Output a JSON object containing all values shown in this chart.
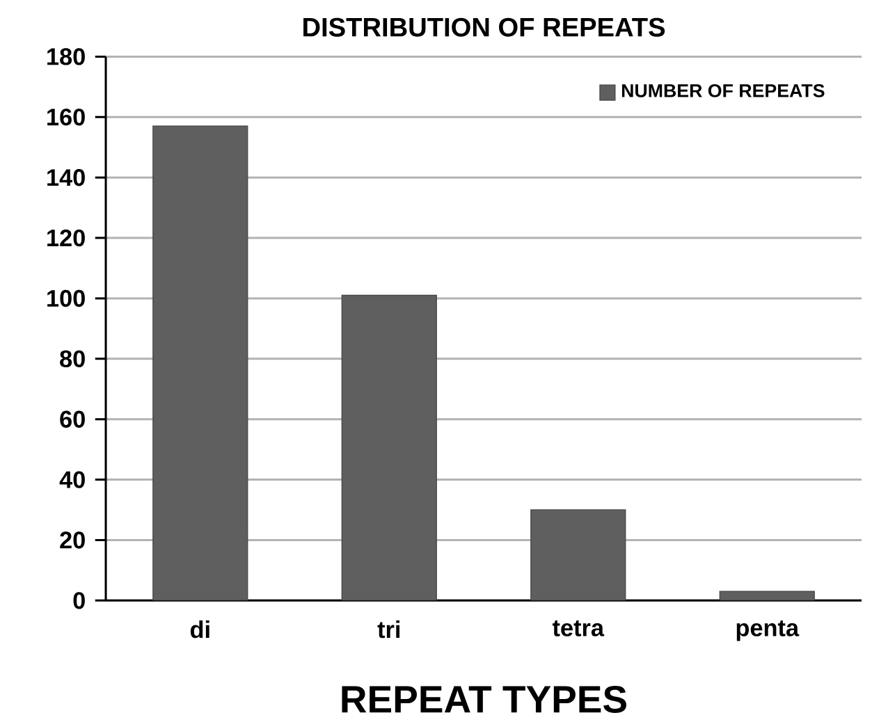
{
  "chart_data": {
    "type": "bar",
    "title": "DISTRIBUTION OF REPEATS",
    "xlabel": "REPEAT TYPES",
    "categories": [
      "di",
      "tri",
      "tetra",
      "penta"
    ],
    "series": [
      {
        "name": "NUMBER OF REPEATS",
        "color": "#5f5f5f",
        "values": [
          157,
          101,
          30,
          3
        ]
      }
    ],
    "ylim": [
      0,
      180
    ],
    "yticks": [
      0,
      20,
      40,
      60,
      80,
      100,
      120,
      140,
      160,
      180
    ],
    "grid": "y",
    "legend": "top right"
  }
}
